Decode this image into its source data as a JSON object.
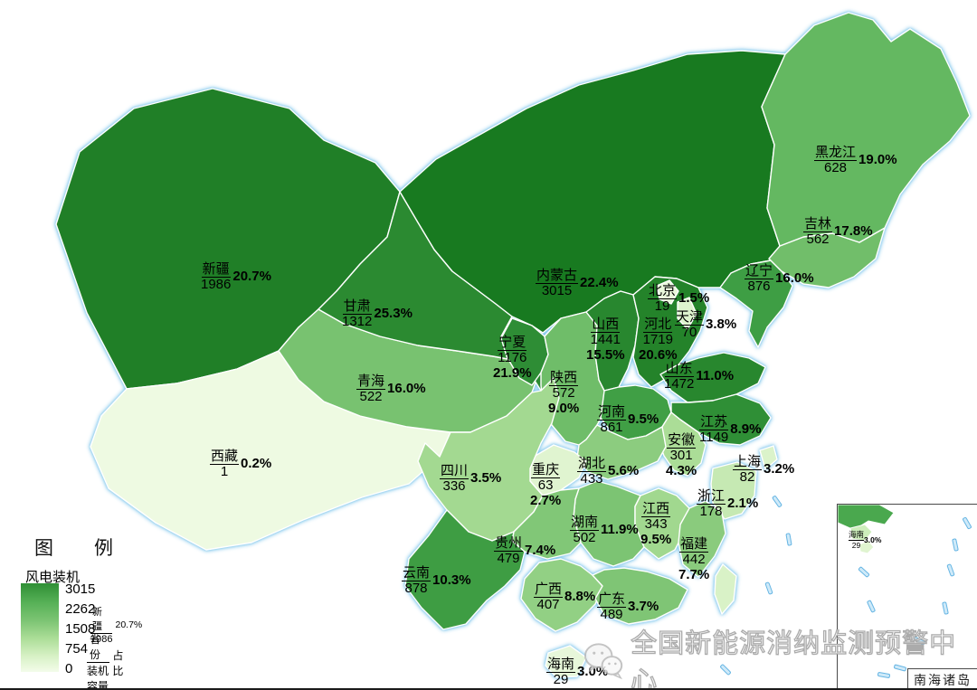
{
  "legend": {
    "title": "图　例",
    "subtitle": "风电装机",
    "ticks": [
      "3015",
      "2262",
      "1508",
      "754",
      "0"
    ],
    "example": {
      "province": "新疆",
      "value": "1986",
      "pct": "20.7%"
    },
    "key": {
      "numerator": "省份",
      "denominator": "装机容量",
      "suffix": "占比"
    }
  },
  "watermark": {
    "text": "全国新能源消纳监测预警中心",
    "icon": "wechat-icon"
  },
  "inset": {
    "title": "南海诸岛",
    "hainan": {
      "name": "海南",
      "value": "29",
      "pct": "3.0%"
    }
  },
  "colors": {
    "scale": [
      [
        "0",
        "#eefae2"
      ],
      [
        "100",
        "#d7f1c5"
      ],
      [
        "300",
        "#abdd97"
      ],
      [
        "500",
        "#7cc473"
      ],
      [
        "700",
        "#57b157"
      ],
      [
        "900",
        "#3b9b41"
      ],
      [
        "1200",
        "#2d8c34"
      ],
      [
        "1600",
        "#25842b"
      ],
      [
        "2200",
        "#1e7d25"
      ],
      [
        "3015",
        "#187a20"
      ]
    ],
    "province_border": "#ffffff",
    "coast_glow": "#7dc3eb",
    "island": "#66b5e3"
  },
  "chart_data": {
    "type": "choropleth_map",
    "title": "风电装机",
    "legend_range": [
      0,
      3015
    ],
    "value_label": "装机容量",
    "share_label": "占比",
    "provinces": [
      {
        "id": "xinjiang",
        "name": "新疆",
        "value": 1986,
        "pct": "20.7%"
      },
      {
        "id": "xizang",
        "name": "西藏",
        "value": 1,
        "pct": "0.2%"
      },
      {
        "id": "qinghai",
        "name": "青海",
        "value": 522,
        "pct": "16.0%"
      },
      {
        "id": "gansu",
        "name": "甘肃",
        "value": 1312,
        "pct": "25.3%"
      },
      {
        "id": "neimenggu",
        "name": "内蒙古",
        "value": 3015,
        "pct": "22.4%"
      },
      {
        "id": "ningxia",
        "name": "宁夏",
        "value": 1176,
        "pct": "21.9%"
      },
      {
        "id": "shaanxi",
        "name": "陕西",
        "value": 572,
        "pct": "9.0%"
      },
      {
        "id": "shanxi",
        "name": "山西",
        "value": 1441,
        "pct": "15.5%"
      },
      {
        "id": "hebei",
        "name": "河北",
        "value": 1719,
        "pct": "20.6%"
      },
      {
        "id": "beijing",
        "name": "北京",
        "value": 19,
        "pct": "1.5%"
      },
      {
        "id": "tianjin",
        "name": "天津",
        "value": 70,
        "pct": "3.8%"
      },
      {
        "id": "shandong",
        "name": "山东",
        "value": 1472,
        "pct": "11.0%"
      },
      {
        "id": "henan",
        "name": "河南",
        "value": 861,
        "pct": "9.5%"
      },
      {
        "id": "liaoning",
        "name": "辽宁",
        "value": 876,
        "pct": "16.0%"
      },
      {
        "id": "jilin",
        "name": "吉林",
        "value": 562,
        "pct": "17.8%"
      },
      {
        "id": "heilongjiang",
        "name": "黑龙江",
        "value": 628,
        "pct": "19.0%"
      },
      {
        "id": "jiangsu",
        "name": "江苏",
        "value": 1149,
        "pct": "8.9%"
      },
      {
        "id": "anhui",
        "name": "安徽",
        "value": 301,
        "pct": "4.3%"
      },
      {
        "id": "shanghai",
        "name": "上海",
        "value": 82,
        "pct": "3.2%"
      },
      {
        "id": "zhejiang",
        "name": "浙江",
        "value": 178,
        "pct": "2.1%"
      },
      {
        "id": "hubei",
        "name": "湖北",
        "value": 433,
        "pct": "5.6%"
      },
      {
        "id": "chongqing",
        "name": "重庆",
        "value": 63,
        "pct": "2.7%"
      },
      {
        "id": "sichuan",
        "name": "四川",
        "value": 336,
        "pct": "3.5%"
      },
      {
        "id": "hunan",
        "name": "湖南",
        "value": 502,
        "pct": "11.9%"
      },
      {
        "id": "jiangxi",
        "name": "江西",
        "value": 343,
        "pct": "9.5%"
      },
      {
        "id": "fujian",
        "name": "福建",
        "value": 442,
        "pct": "7.7%"
      },
      {
        "id": "guizhou",
        "name": "贵州",
        "value": 479,
        "pct": "7.4%"
      },
      {
        "id": "yunnan",
        "name": "云南",
        "value": 878,
        "pct": "10.3%"
      },
      {
        "id": "guangxi",
        "name": "广西",
        "value": 407,
        "pct": "8.8%"
      },
      {
        "id": "guangdong",
        "name": "广东",
        "value": 489,
        "pct": "3.7%"
      },
      {
        "id": "hainan",
        "name": "海南",
        "value": 29,
        "pct": "3.0%"
      }
    ]
  }
}
